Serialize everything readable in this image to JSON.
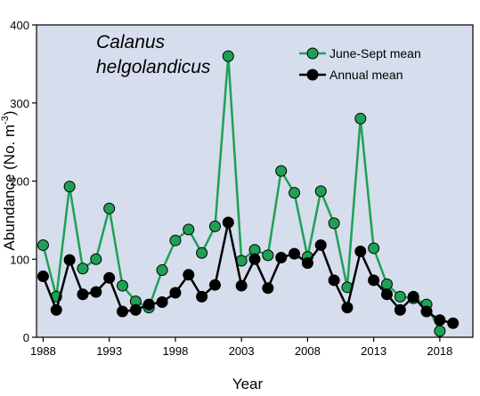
{
  "chart_data": {
    "type": "line",
    "title": "",
    "annotation_lines": [
      "Calanus",
      "helgolandicus"
    ],
    "xlabel": "Year",
    "ylabel_main": "Abundance (No. m",
    "ylabel_sup": "-3",
    "ylabel_close": ")",
    "xlim": [
      1987.5,
      2020.5
    ],
    "ylim": [
      0,
      400
    ],
    "xticks": [
      1988,
      1993,
      1998,
      2003,
      2008,
      2013,
      2018
    ],
    "yticks": [
      0,
      100,
      200,
      300,
      400
    ],
    "grid": false,
    "legend_position": "top-right",
    "background_color": "#d6dded",
    "series": [
      {
        "name": "June-Sept mean",
        "color": "#1fa055",
        "marker_fill": "#1fa055",
        "x": [
          1988,
          1989,
          1990,
          1991,
          1992,
          1993,
          1994,
          1995,
          1996,
          1997,
          1998,
          1999,
          2000,
          2001,
          2002,
          2003,
          2004,
          2005,
          2006,
          2007,
          2008,
          2009,
          2010,
          2011,
          2012,
          2013,
          2014,
          2015,
          2016,
          2017,
          2018
        ],
        "values": [
          118,
          52,
          193,
          88,
          100,
          165,
          66,
          46,
          38,
          86,
          124,
          138,
          108,
          142,
          360,
          98,
          112,
          105,
          213,
          185,
          103,
          187,
          146,
          64,
          280,
          114,
          68,
          52,
          50,
          42,
          8
        ]
      },
      {
        "name": "Annual mean",
        "color": "#000000",
        "marker_fill": "#000000",
        "x": [
          1988,
          1989,
          1990,
          1991,
          1992,
          1993,
          1994,
          1995,
          1996,
          1997,
          1998,
          1999,
          2000,
          2001,
          2002,
          2003,
          2004,
          2005,
          2006,
          2007,
          2008,
          2009,
          2010,
          2011,
          2012,
          2013,
          2014,
          2015,
          2016,
          2017,
          2018,
          2019
        ],
        "values": [
          78,
          35,
          99,
          55,
          58,
          76,
          33,
          35,
          42,
          45,
          57,
          80,
          52,
          67,
          147,
          66,
          100,
          63,
          102,
          107,
          95,
          118,
          73,
          38,
          110,
          73,
          55,
          35,
          52,
          33,
          22,
          18
        ]
      }
    ]
  }
}
